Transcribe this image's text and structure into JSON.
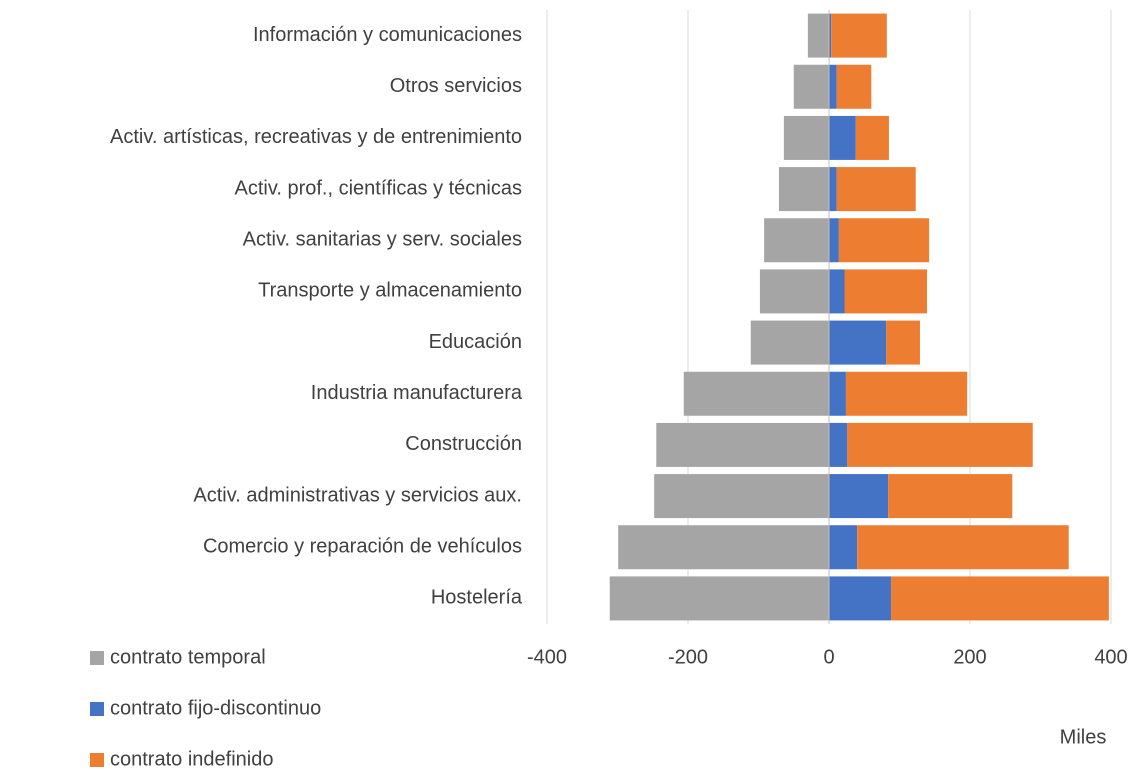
{
  "chart_data": {
    "type": "bar",
    "orientation": "horizontal",
    "stacked": true,
    "categories": [
      "Información y comunicaciones",
      "Otros servicios",
      "Activ. artísticas, recreativas y de entrenimiento",
      "Activ. prof., científicas y técnicas",
      "Activ. sanitarias y serv. sociales",
      "Transporte y almacenamiento",
      "Educación",
      "Industria manufacturera",
      "Construcción",
      "Activ. administrativas y servicios aux.",
      "Comercio y reparación de vehículos",
      "Hostelería"
    ],
    "series": [
      {
        "name": "contrato temporal",
        "color": "#a5a5a5",
        "values": [
          -30,
          -50,
          -64,
          -71,
          -92,
          -98,
          -111,
          -206,
          -245,
          -248,
          -299,
          -311
        ]
      },
      {
        "name": "contrato fijo-discontinuo",
        "color": "#4472c4",
        "values": [
          3,
          11,
          38,
          11,
          14,
          22,
          81,
          24,
          26,
          84,
          40,
          88
        ]
      },
      {
        "name": "contrato indefinido",
        "color": "#ed7d31",
        "values": [
          79,
          49,
          47,
          112,
          128,
          117,
          48,
          172,
          263,
          176,
          300,
          309
        ]
      }
    ],
    "xlim": [
      -400,
      400
    ],
    "xticks": [
      -400,
      -200,
      0,
      200,
      400
    ],
    "x_axis_label": "Miles",
    "grid": true,
    "legend": "bottom-left"
  }
}
